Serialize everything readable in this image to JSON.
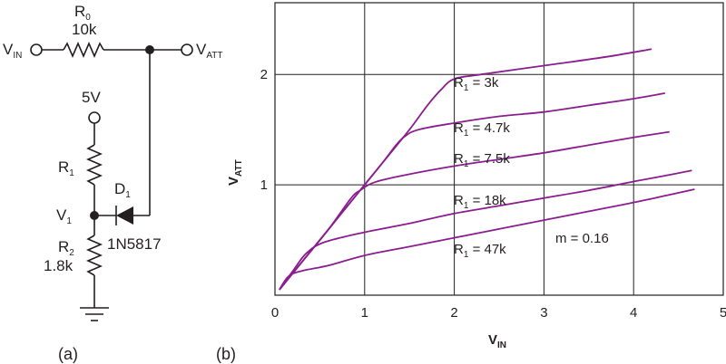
{
  "schematic": {
    "label_vin": "V",
    "label_vin_sub": "IN",
    "label_vatt": "V",
    "label_vatt_sub": "ATT",
    "r0_name": "R",
    "r0_sub": "0",
    "r0_value": "10k",
    "supply": "5V",
    "r1_name": "R",
    "r1_sub": "1",
    "d1_name": "D",
    "d1_sub": "1",
    "v1_name": "V",
    "v1_sub": "1",
    "d1_part": "1N5817",
    "r2_name": "R",
    "r2_sub": "2",
    "r2_value": "1.8k",
    "panel_label": "(a)"
  },
  "chart_panel_label": "(b)",
  "chart_data": {
    "type": "line",
    "xlabel": "V",
    "xlabel_sub": "IN",
    "ylabel": "V",
    "ylabel_sub": "ATT",
    "xlim": [
      0,
      5
    ],
    "ylim": [
      0,
      2.65
    ],
    "xticks": [
      0,
      1,
      2,
      3,
      4,
      5
    ],
    "yticks": [
      1,
      2
    ],
    "xtick_labels": [
      "0",
      "1",
      "2",
      "3",
      "4",
      "5"
    ],
    "ytick_labels": [
      "1",
      "2"
    ],
    "grid": true,
    "annotation": "m = 0.16",
    "series": [
      {
        "name": "R1 = 3k",
        "label_main": "R",
        "label_sub": "1",
        "label_rest": " = 3k",
        "points": [
          [
            0.05,
            0.05
          ],
          [
            0.3,
            0.3
          ],
          [
            0.6,
            0.6
          ],
          [
            0.9,
            0.9
          ],
          [
            1.2,
            1.2
          ],
          [
            1.5,
            1.5
          ],
          [
            1.7,
            1.72
          ],
          [
            1.85,
            1.86
          ],
          [
            2.0,
            1.96
          ],
          [
            2.3,
            2.0
          ],
          [
            3.0,
            2.08
          ],
          [
            3.7,
            2.16
          ],
          [
            4.2,
            2.23
          ]
        ]
      },
      {
        "name": "R1 = 4.7k",
        "label_main": "R",
        "label_sub": "1",
        "label_rest": " = 4.7k",
        "points": [
          [
            0.05,
            0.05
          ],
          [
            0.3,
            0.3
          ],
          [
            0.6,
            0.6
          ],
          [
            0.9,
            0.9
          ],
          [
            1.2,
            1.2
          ],
          [
            1.35,
            1.36
          ],
          [
            1.45,
            1.44
          ],
          [
            1.6,
            1.5
          ],
          [
            2.0,
            1.56
          ],
          [
            2.5,
            1.62
          ],
          [
            3.0,
            1.66
          ],
          [
            3.5,
            1.72
          ],
          [
            4.0,
            1.78
          ],
          [
            4.35,
            1.83
          ]
        ]
      },
      {
        "name": "R1 = 7.5k",
        "label_main": "R",
        "label_sub": "1",
        "label_rest": " = 7.5k",
        "points": [
          [
            0.05,
            0.05
          ],
          [
            0.3,
            0.3
          ],
          [
            0.6,
            0.6
          ],
          [
            0.85,
            0.88
          ],
          [
            0.95,
            0.95
          ],
          [
            1.1,
            1.02
          ],
          [
            1.4,
            1.08
          ],
          [
            2.0,
            1.17
          ],
          [
            2.5,
            1.23
          ],
          [
            3.0,
            1.29
          ],
          [
            3.5,
            1.36
          ],
          [
            4.0,
            1.43
          ],
          [
            4.4,
            1.48
          ]
        ]
      },
      {
        "name": "R1 = 18k",
        "label_main": "R",
        "label_sub": "1",
        "label_rest": " = 18k",
        "points": [
          [
            0.05,
            0.05
          ],
          [
            0.2,
            0.22
          ],
          [
            0.35,
            0.38
          ],
          [
            0.55,
            0.48
          ],
          [
            1.0,
            0.57
          ],
          [
            1.5,
            0.65
          ],
          [
            2.0,
            0.74
          ],
          [
            2.5,
            0.81
          ],
          [
            3.0,
            0.88
          ],
          [
            3.5,
            0.95
          ],
          [
            4.0,
            1.03
          ],
          [
            4.4,
            1.09
          ],
          [
            4.65,
            1.13
          ]
        ]
      },
      {
        "name": "R1 = 47k",
        "label_main": "R",
        "label_sub": "1",
        "label_rest": " = 47k",
        "points": [
          [
            0.05,
            0.05
          ],
          [
            0.15,
            0.17
          ],
          [
            0.3,
            0.22
          ],
          [
            0.6,
            0.27
          ],
          [
            1.0,
            0.36
          ],
          [
            1.5,
            0.44
          ],
          [
            2.0,
            0.52
          ],
          [
            2.5,
            0.6
          ],
          [
            3.0,
            0.68
          ],
          [
            3.5,
            0.76
          ],
          [
            4.0,
            0.84
          ],
          [
            4.4,
            0.91
          ],
          [
            4.68,
            0.96
          ]
        ]
      }
    ]
  }
}
